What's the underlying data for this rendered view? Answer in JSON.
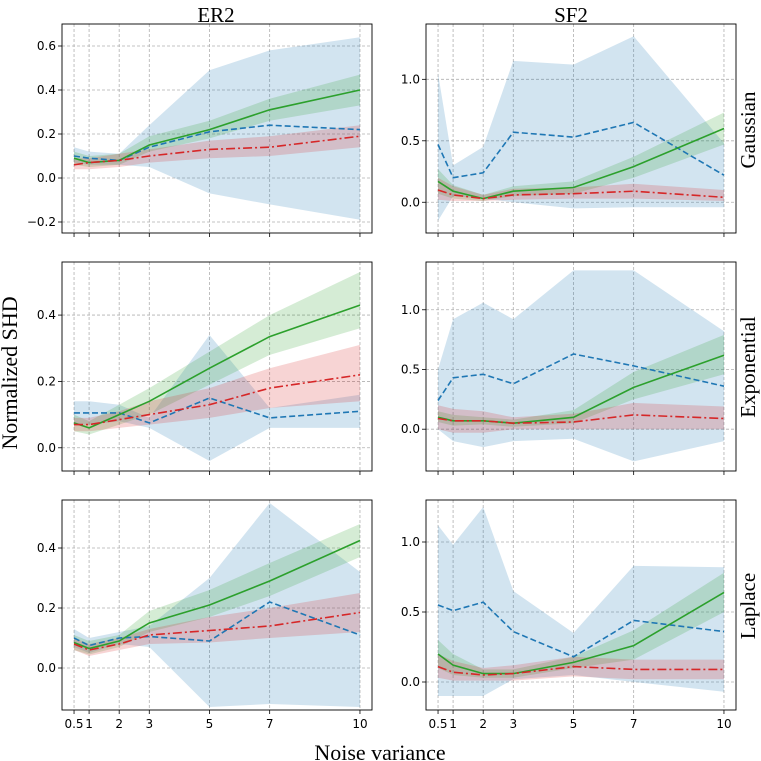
{
  "chart_data": {
    "type": "line",
    "xlabel": "Noise variance",
    "ylabel": "Normalized SHD",
    "x": [
      0.5,
      1,
      2,
      3,
      5,
      7,
      10
    ],
    "x_tick_labels": [
      "0.5",
      "1",
      "2",
      "3",
      "5",
      "7",
      "10"
    ],
    "columns": [
      "ER2",
      "SF2"
    ],
    "rows": [
      "Gaussian",
      "Exponential",
      "Laplace"
    ],
    "colors": {
      "green": "#2ca02c",
      "blue": "#1f77b4",
      "red": "#d62728"
    },
    "grid": true,
    "panels": [
      {
        "col": "ER2",
        "row": "Gaussian",
        "ylim": [
          -0.25,
          0.7
        ],
        "yticks": [
          -0.2,
          0.0,
          0.2,
          0.4,
          0.6
        ],
        "ytick_labels": [
          "−0.2",
          "0.0",
          "0.2",
          "0.4",
          "0.6"
        ],
        "series": [
          {
            "color": "blue",
            "style": "dashed",
            "values": [
              0.1,
              0.09,
              0.08,
              0.14,
              0.21,
              0.24,
              0.22
            ],
            "lower": [
              0.07,
              0.06,
              0.06,
              0.05,
              -0.07,
              -0.12,
              -0.19
            ],
            "upper": [
              0.14,
              0.12,
              0.11,
              0.24,
              0.49,
              0.58,
              0.64
            ]
          },
          {
            "color": "green",
            "style": "solid",
            "values": [
              0.09,
              0.07,
              0.08,
              0.15,
              0.22,
              0.31,
              0.4
            ],
            "lower": [
              0.06,
              0.05,
              0.06,
              0.12,
              0.18,
              0.26,
              0.33
            ],
            "upper": [
              0.12,
              0.1,
              0.11,
              0.19,
              0.26,
              0.36,
              0.47
            ]
          },
          {
            "color": "red",
            "style": "dashdot",
            "values": [
              0.06,
              0.07,
              0.08,
              0.1,
              0.13,
              0.14,
              0.19
            ],
            "lower": [
              0.04,
              0.04,
              0.05,
              0.07,
              0.09,
              0.1,
              0.14
            ],
            "upper": [
              0.09,
              0.09,
              0.11,
              0.13,
              0.17,
              0.19,
              0.24
            ]
          }
        ]
      },
      {
        "col": "SF2",
        "row": "Gaussian",
        "ylim": [
          -0.25,
          1.45
        ],
        "yticks": [
          0.0,
          0.5,
          1.0
        ],
        "ytick_labels": [
          "0.0",
          "0.5",
          "1.0"
        ],
        "series": [
          {
            "color": "blue",
            "style": "dashed",
            "values": [
              0.47,
              0.2,
              0.24,
              0.57,
              0.53,
              0.65,
              0.22
            ],
            "lower": [
              -0.15,
              0.05,
              0.03,
              0.0,
              -0.05,
              -0.04,
              -0.04
            ],
            "upper": [
              1.05,
              0.3,
              0.45,
              1.15,
              1.12,
              1.35,
              0.48
            ]
          },
          {
            "color": "green",
            "style": "solid",
            "values": [
              0.17,
              0.09,
              0.03,
              0.09,
              0.12,
              0.29,
              0.6
            ],
            "lower": [
              0.07,
              0.03,
              0.01,
              0.05,
              0.07,
              0.2,
              0.47
            ],
            "upper": [
              0.27,
              0.14,
              0.06,
              0.13,
              0.17,
              0.37,
              0.73
            ]
          },
          {
            "color": "red",
            "style": "dashdot",
            "values": [
              0.1,
              0.06,
              0.03,
              0.06,
              0.07,
              0.09,
              0.04
            ],
            "lower": [
              0.02,
              0.01,
              0.01,
              0.02,
              0.03,
              0.03,
              0.01
            ],
            "upper": [
              0.2,
              0.13,
              0.06,
              0.11,
              0.12,
              0.15,
              0.1
            ]
          }
        ]
      },
      {
        "col": "ER2",
        "row": "Exponential",
        "ylim": [
          -0.07,
          0.56
        ],
        "yticks": [
          0.0,
          0.2,
          0.4
        ],
        "ytick_labels": [
          "0.0",
          "0.2",
          "0.4"
        ],
        "series": [
          {
            "color": "blue",
            "style": "dashed",
            "values": [
              0.105,
              0.105,
              0.105,
              0.075,
              0.15,
              0.09,
              0.11
            ],
            "lower": [
              0.07,
              0.07,
              0.08,
              0.06,
              -0.04,
              0.06,
              0.06
            ],
            "upper": [
              0.14,
              0.14,
              0.13,
              0.09,
              0.34,
              0.12,
              0.16
            ]
          },
          {
            "color": "green",
            "style": "solid",
            "values": [
              0.075,
              0.06,
              0.1,
              0.14,
              0.24,
              0.335,
              0.43
            ],
            "lower": [
              0.05,
              0.04,
              0.07,
              0.1,
              0.19,
              0.28,
              0.36
            ],
            "upper": [
              0.1,
              0.08,
              0.13,
              0.18,
              0.29,
              0.4,
              0.53
            ]
          },
          {
            "color": "red",
            "style": "dashdot",
            "values": [
              0.07,
              0.07,
              0.085,
              0.1,
              0.13,
              0.18,
              0.22
            ],
            "lower": [
              0.05,
              0.05,
              0.06,
              0.07,
              0.09,
              0.12,
              0.14
            ],
            "upper": [
              0.09,
              0.09,
              0.11,
              0.14,
              0.18,
              0.24,
              0.31
            ]
          }
        ]
      },
      {
        "col": "SF2",
        "row": "Exponential",
        "ylim": [
          -0.35,
          1.4
        ],
        "yticks": [
          0.0,
          0.5,
          1.0
        ],
        "ytick_labels": [
          "0.0",
          "0.5",
          "1.0"
        ],
        "series": [
          {
            "color": "blue",
            "style": "dashed",
            "values": [
              0.24,
              0.43,
              0.46,
              0.38,
              0.63,
              0.53,
              0.36
            ],
            "lower": [
              0.0,
              -0.1,
              -0.15,
              -0.1,
              -0.08,
              -0.27,
              -0.1
            ],
            "upper": [
              0.5,
              0.92,
              1.06,
              0.92,
              1.33,
              1.33,
              0.82
            ]
          },
          {
            "color": "green",
            "style": "solid",
            "values": [
              0.1,
              0.07,
              0.07,
              0.05,
              0.1,
              0.35,
              0.62
            ],
            "lower": [
              0.06,
              0.03,
              0.04,
              0.02,
              0.05,
              0.25,
              0.46
            ],
            "upper": [
              0.15,
              0.12,
              0.1,
              0.08,
              0.16,
              0.48,
              0.79
            ]
          },
          {
            "color": "red",
            "style": "dashdot",
            "values": [
              0.09,
              0.07,
              0.07,
              0.05,
              0.06,
              0.12,
              0.09
            ],
            "lower": [
              0.0,
              -0.03,
              -0.03,
              0.0,
              0.0,
              0.0,
              0.0
            ],
            "upper": [
              0.2,
              0.17,
              0.15,
              0.1,
              0.13,
              0.22,
              0.19
            ]
          }
        ]
      },
      {
        "col": "ER2",
        "row": "Laplace",
        "ylim": [
          -0.14,
          0.56
        ],
        "yticks": [
          0.0,
          0.2,
          0.4
        ],
        "ytick_labels": [
          "0.0",
          "0.2",
          "0.4"
        ],
        "series": [
          {
            "color": "blue",
            "style": "dashed",
            "values": [
              0.1,
              0.075,
              0.1,
              0.105,
              0.09,
              0.22,
              0.11
            ],
            "lower": [
              0.07,
              0.05,
              0.08,
              0.07,
              -0.13,
              -0.12,
              -0.13
            ],
            "upper": [
              0.13,
              0.1,
              0.12,
              0.14,
              0.3,
              0.55,
              0.32
            ]
          },
          {
            "color": "green",
            "style": "solid",
            "values": [
              0.085,
              0.065,
              0.09,
              0.15,
              0.21,
              0.29,
              0.425
            ],
            "lower": [
              0.06,
              0.045,
              0.07,
              0.12,
              0.17,
              0.24,
              0.37
            ],
            "upper": [
              0.11,
              0.09,
              0.11,
              0.19,
              0.26,
              0.35,
              0.48
            ]
          },
          {
            "color": "red",
            "style": "dashdot",
            "values": [
              0.08,
              0.06,
              0.08,
              0.11,
              0.125,
              0.14,
              0.185
            ],
            "lower": [
              0.06,
              0.04,
              0.06,
              0.08,
              0.085,
              0.1,
              0.12
            ],
            "upper": [
              0.1,
              0.08,
              0.1,
              0.13,
              0.17,
              0.2,
              0.25
            ]
          }
        ]
      },
      {
        "col": "SF2",
        "row": "Laplace",
        "ylim": [
          -0.2,
          1.3
        ],
        "yticks": [
          0.0,
          0.5,
          1.0
        ],
        "ytick_labels": [
          "0.0",
          "0.5",
          "1.0"
        ],
        "series": [
          {
            "color": "blue",
            "style": "dashed",
            "values": [
              0.55,
              0.51,
              0.57,
              0.36,
              0.18,
              0.44,
              0.36
            ],
            "lower": [
              -0.1,
              -0.1,
              -0.1,
              0.02,
              0.05,
              0.0,
              -0.07
            ],
            "upper": [
              1.12,
              0.98,
              1.25,
              0.65,
              0.35,
              0.83,
              0.82
            ]
          },
          {
            "color": "green",
            "style": "solid",
            "values": [
              0.2,
              0.12,
              0.06,
              0.06,
              0.14,
              0.26,
              0.64
            ],
            "lower": [
              0.1,
              0.05,
              0.03,
              0.03,
              0.1,
              0.16,
              0.5
            ],
            "upper": [
              0.3,
              0.2,
              0.09,
              0.09,
              0.18,
              0.37,
              0.78
            ]
          },
          {
            "color": "red",
            "style": "dashdot",
            "values": [
              0.11,
              0.07,
              0.05,
              0.06,
              0.11,
              0.09,
              0.09
            ],
            "lower": [
              0.03,
              0.01,
              0.01,
              0.01,
              0.04,
              0.02,
              0.02
            ],
            "upper": [
              0.2,
              0.15,
              0.1,
              0.12,
              0.18,
              0.16,
              0.16
            ]
          }
        ]
      }
    ]
  }
}
